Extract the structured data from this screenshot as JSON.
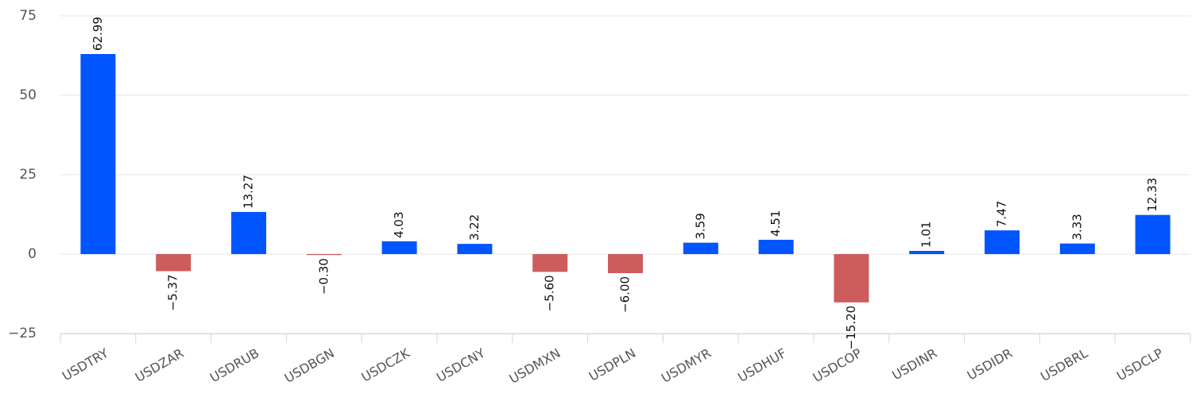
{
  "chart_data": {
    "type": "bar",
    "categories": [
      "USDTRY",
      "USDZAR",
      "USDRUB",
      "USDBGN",
      "USDCZK",
      "USDCNY",
      "USDMXN",
      "USDPLN",
      "USDMYR",
      "USDHUF",
      "USDCOP",
      "USDINR",
      "USDIDR",
      "USDBRL",
      "USDCLP"
    ],
    "values": [
      62.99,
      -5.37,
      13.27,
      -0.3,
      4.03,
      3.22,
      -5.6,
      -6.0,
      3.59,
      4.51,
      -15.2,
      1.01,
      7.47,
      3.33,
      12.33
    ],
    "value_labels": [
      "62.99",
      "−5.37",
      "13.27",
      "−0.30",
      "4.03",
      "3.22",
      "−5.60",
      "−6.00",
      "3.59",
      "4.51",
      "−15.20",
      "1.01",
      "7.47",
      "3.33",
      "12.33"
    ],
    "positive_color": "#0055ff",
    "negative_color": "#cd5c5c",
    "ylim": [
      -25,
      75
    ],
    "yticks": [
      {
        "value": -25,
        "label": "−25"
      },
      0,
      25,
      50,
      75
    ],
    "grid": true
  }
}
